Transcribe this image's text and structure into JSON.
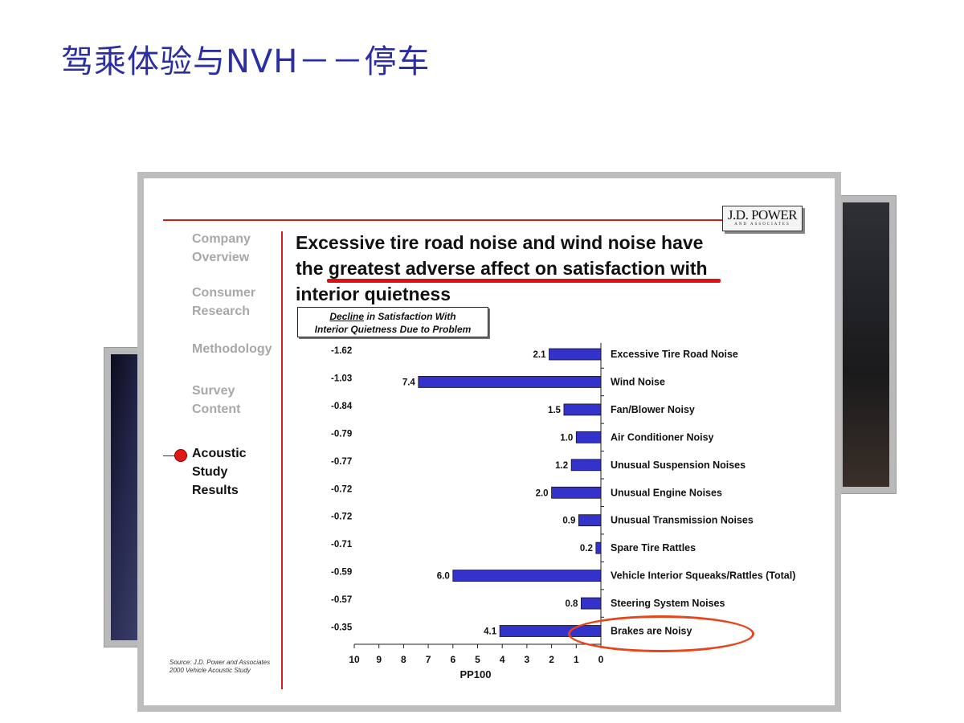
{
  "slide": {
    "title": "驾乘体验与NVH－－停车"
  },
  "logo": {
    "main": "J.D. POWER",
    "sub": "AND ASSOCIATES"
  },
  "nav": {
    "items": [
      {
        "label_line1": "Company",
        "label_line2": "Overview"
      },
      {
        "label_line1": "Consumer",
        "label_line2": "Research"
      },
      {
        "label_line1": "Methodology",
        "label_line2": ""
      },
      {
        "label_line1": "Survey",
        "label_line2": "Content"
      },
      {
        "label_line1": "Acoustic",
        "label_line2": "Study",
        "label_line3": "Results"
      }
    ]
  },
  "headline": {
    "line1": "Excessive tire road noise and wind noise have",
    "line2": "the greatest adverse affect on satisfaction with",
    "line3": "interior quietness"
  },
  "legend_box": {
    "line1_underlined": "Decline",
    "line1_rest": " in Satisfaction With",
    "line2": "Interior Quietness Due to Problem"
  },
  "source": {
    "line1": "Source:  J.D. Power and Associates",
    "line2": "2000 Vehicle Acoustic Study"
  },
  "chart_data": {
    "type": "bar",
    "orientation": "horizontal",
    "x_direction": "reversed",
    "categories": [
      "Excessive Tire Road Noise",
      "Wind Noise",
      "Fan/Blower Noisy",
      "Air Conditioner Noisy",
      "Unusual Suspension Noises",
      "Unusual Engine Noises",
      "Unusual Transmission Noises",
      "Spare Tire Rattles",
      "Vehicle Interior Squeaks/Rattles (Total)",
      "Steering System Noises",
      "Brakes are Noisy"
    ],
    "values": [
      2.1,
      7.4,
      1.5,
      1.0,
      1.2,
      2.0,
      0.9,
      0.2,
      6.0,
      0.8,
      4.1
    ],
    "value_labels": [
      "2.1",
      "7.4",
      "1.5",
      "1.0",
      "1.2",
      "2.0",
      "0.9",
      "0.2",
      "6.0",
      "0.8",
      "4.1"
    ],
    "decline_labels": [
      "-1.62",
      "-1.03",
      "-0.84",
      "-0.79",
      "-0.77",
      "-0.72",
      "-0.72",
      "-0.71",
      "-0.59",
      "-0.57",
      "-0.35"
    ],
    "xlabel": "PP100",
    "xlim": [
      0,
      10
    ],
    "xticks": [
      "10",
      "9",
      "8",
      "7",
      "6",
      "5",
      "4",
      "3",
      "2",
      "1",
      "0"
    ],
    "grid": false,
    "bar_color": "#3333cc",
    "highlight_category": "Brakes are Noisy",
    "highlight_color": "#e8451a"
  }
}
